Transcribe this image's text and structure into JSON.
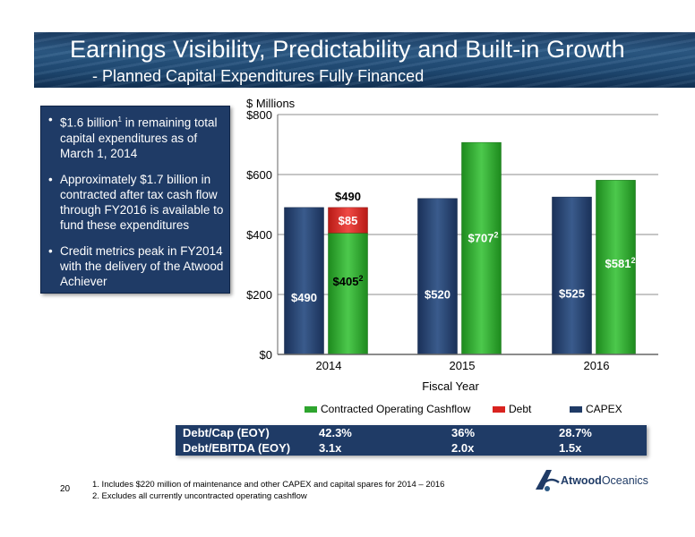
{
  "header": {
    "title": "Earnings Visibility, Predictability and Built-in Growth",
    "subtitle": "- Planned Capital Expenditures Fully Financed"
  },
  "bullets": [
    {
      "text": "$1.6 billion",
      "sup": "1",
      "rest": " in remaining total capital expenditures as of March 1, 2014"
    },
    {
      "text": "Approximately $1.7 billion in contracted after tax cash flow through FY2016 is available to fund these expenditures",
      "sup": "",
      "rest": ""
    },
    {
      "text": "Credit metrics peak in FY2014 with the delivery of the Atwood Achiever",
      "sup": "",
      "rest": ""
    }
  ],
  "chart_data": {
    "type": "bar",
    "ylabel": "$ Millions",
    "xlabel": "Fiscal Year",
    "categories": [
      "2014",
      "2015",
      "2016"
    ],
    "ylim": [
      0,
      800
    ],
    "yticks": [
      "$0",
      "$200",
      "$400",
      "$600",
      "$800"
    ],
    "ytick_values": [
      0,
      200,
      400,
      600,
      800
    ],
    "grid": true,
    "series": [
      {
        "name": "CAPEX",
        "color": "#1f3b66",
        "values": [
          490,
          520,
          525
        ],
        "labels": [
          "$490",
          "$520",
          "$525"
        ]
      },
      {
        "name": "Contracted Operating Cashflow",
        "color": "#2ea52e",
        "values": [
          405,
          707,
          581
        ],
        "labels": [
          "$405",
          "$707",
          "$581"
        ],
        "label_sup": "2"
      },
      {
        "name": "Debt",
        "color": "#d9231f",
        "values": [
          85,
          0,
          0
        ],
        "labels": [
          "$85",
          "",
          ""
        ]
      }
    ],
    "stack_total_label": "$490",
    "legend_position": "bottom"
  },
  "legend": [
    {
      "label": "Contracted Operating Cashflow",
      "color": "#2ea52e"
    },
    {
      "label": "Debt",
      "color": "#d9231f"
    },
    {
      "label": "CAPEX",
      "color": "#1f3b66"
    }
  ],
  "metrics": {
    "rows": [
      {
        "label": "Debt/Cap (EOY)",
        "values": [
          "42.3%",
          "36%",
          "28.7%"
        ]
      },
      {
        "label": "Debt/EBITDA (EOY)",
        "values": [
          "3.1x",
          "2.0x",
          "1.5x"
        ]
      }
    ]
  },
  "footer": {
    "page_number": "20",
    "footnotes": [
      "1.   Includes $220 million of maintenance and other CAPEX and capital spares for 2014 – 2016",
      "2.   Excludes all currently uncontracted operating cashflow"
    ],
    "logo_text_1": "Atwood",
    "logo_text_2": "Oceanics"
  }
}
